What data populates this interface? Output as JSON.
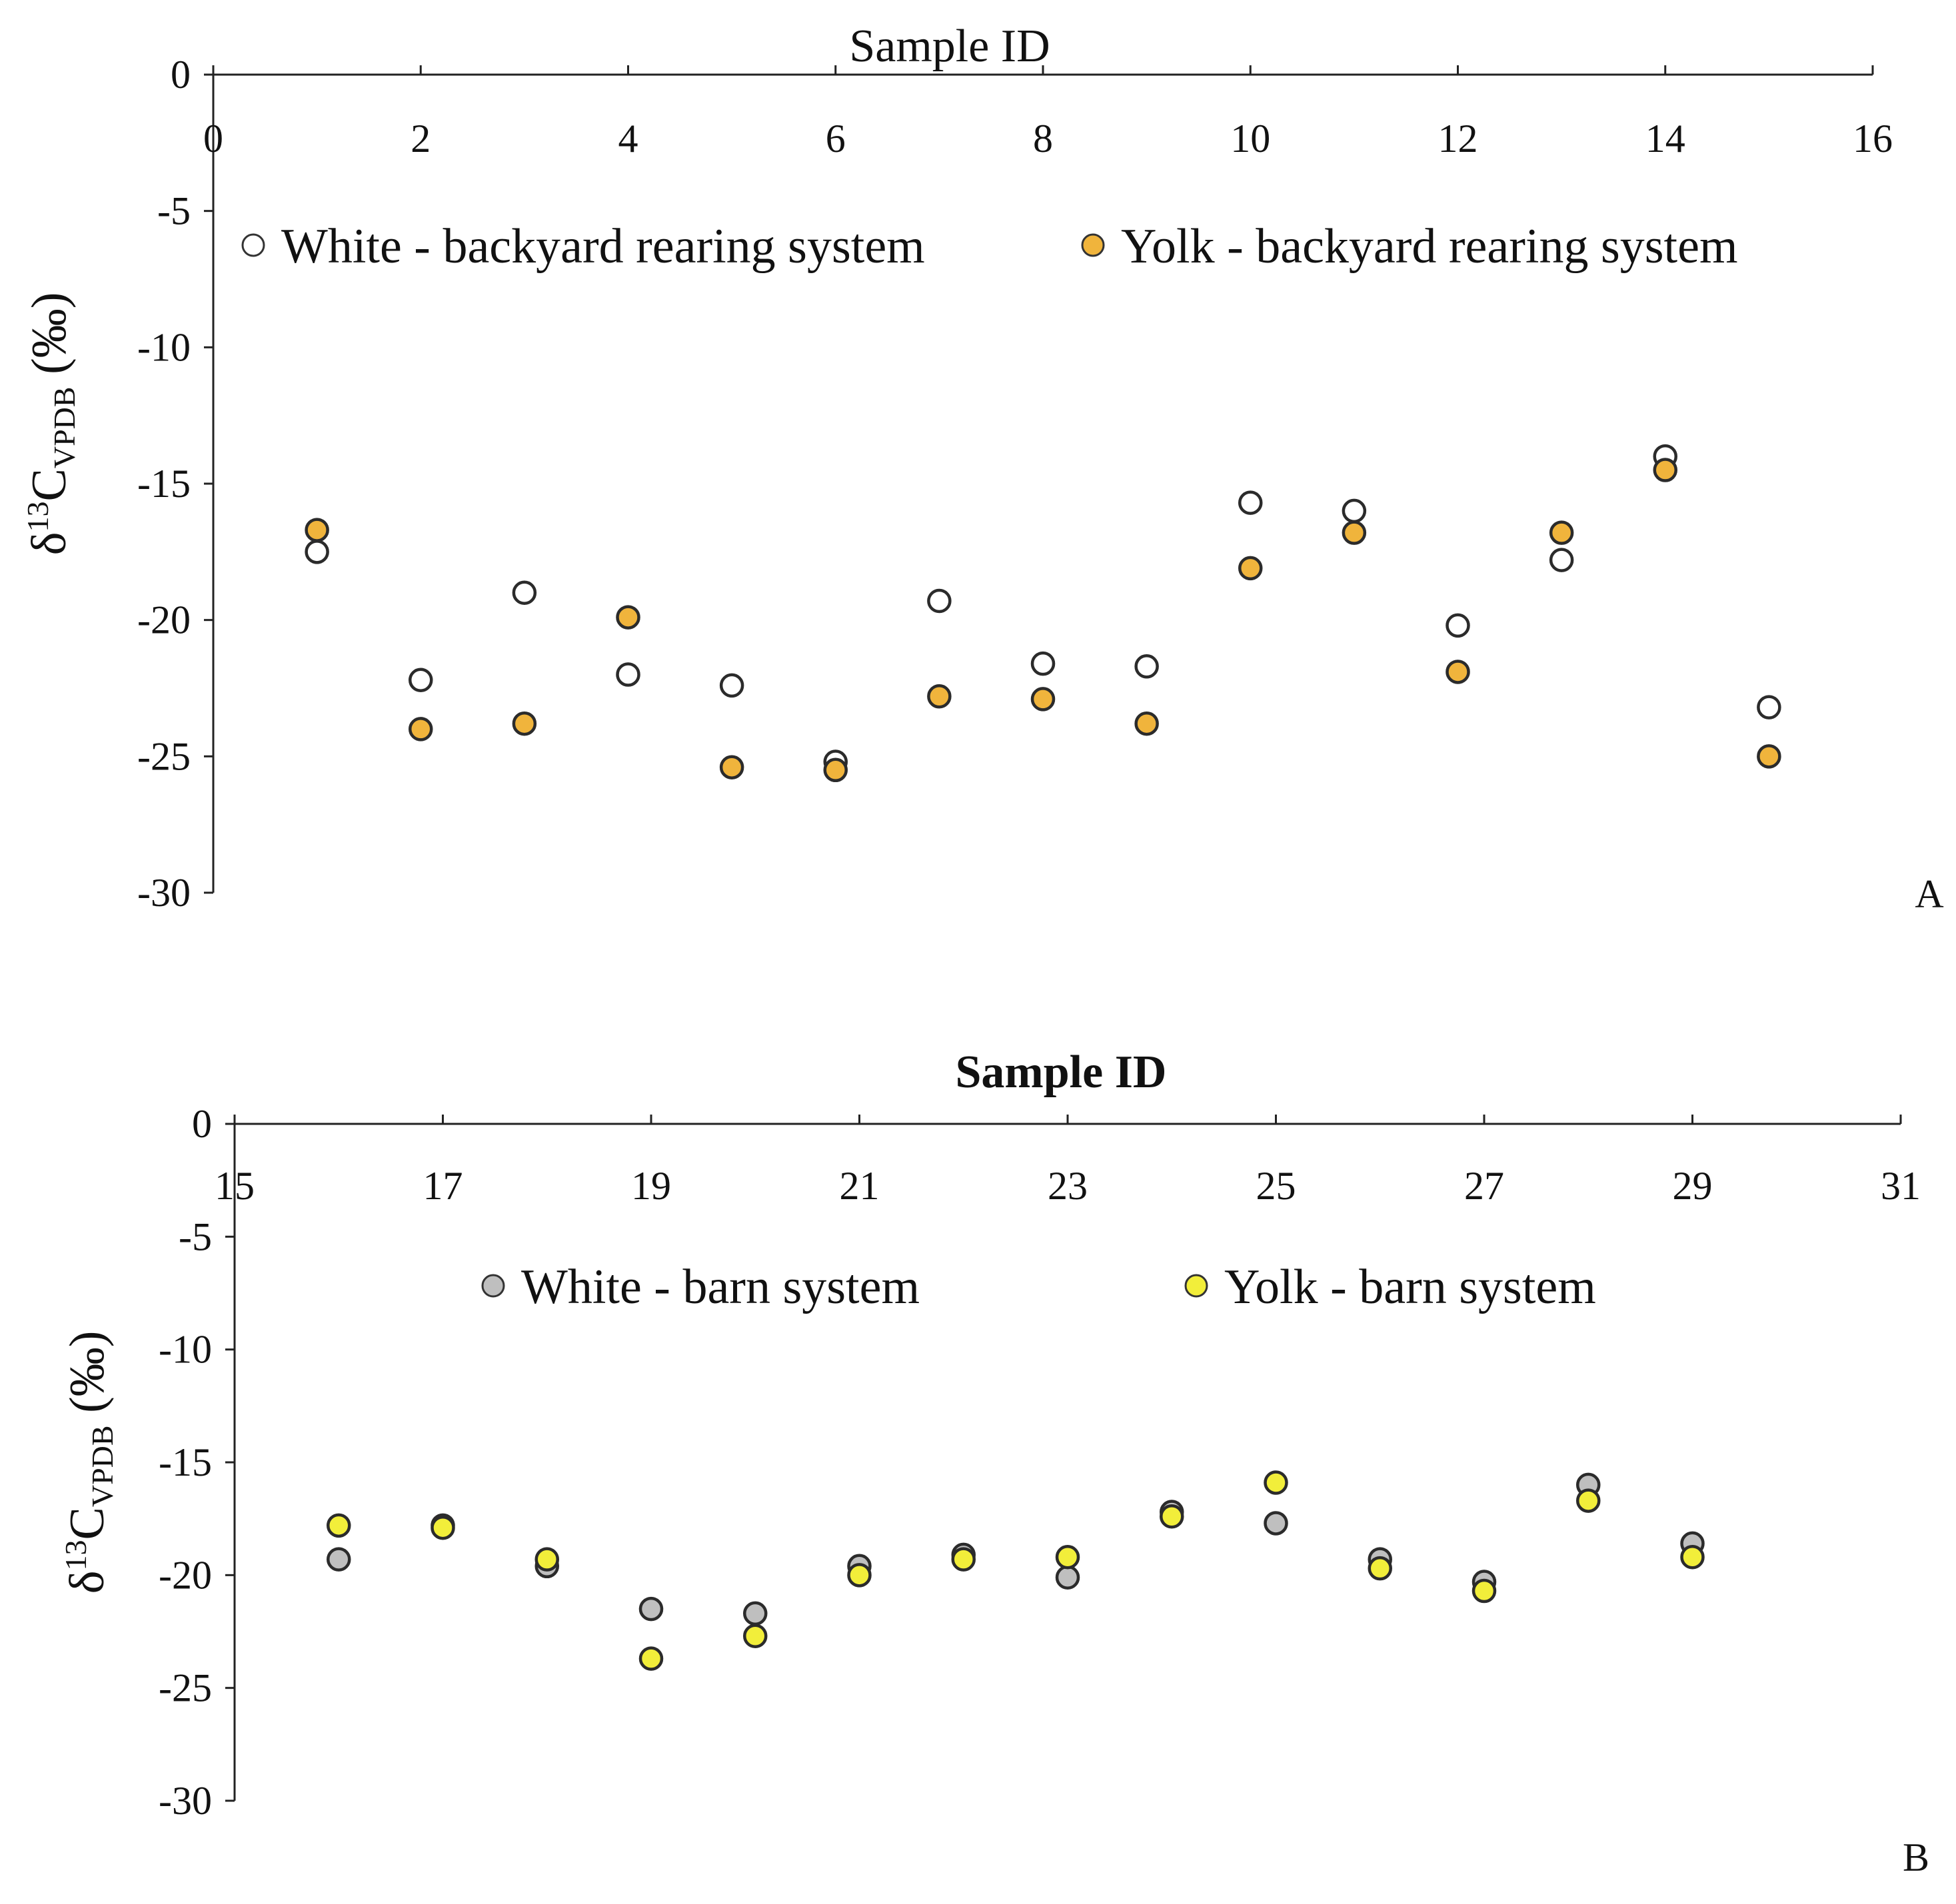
{
  "chart_data": [
    {
      "type": "scatter",
      "panel_label": "A",
      "xlabel": "Sample ID",
      "xlabel_bold": false,
      "ylabel": {
        "symbol": "δ",
        "superscript": "13",
        "element": "C",
        "subscript": "VPDB",
        "unit": " (‰)"
      },
      "xlim": [
        0,
        16
      ],
      "ylim": [
        -30,
        0
      ],
      "x_axis_position": "top",
      "x_ticks": [
        0,
        2,
        4,
        6,
        8,
        10,
        12,
        14,
        16
      ],
      "x_tick_labels": [
        "0",
        "2",
        "4",
        "6",
        "8",
        "10",
        "12",
        "14",
        "16"
      ],
      "y_ticks": [
        0,
        -5,
        -10,
        -15,
        -20,
        -25,
        -30
      ],
      "y_tick_labels": [
        "0",
        "-5",
        "-10",
        "-15",
        "-20",
        "-25",
        "-30"
      ],
      "grid": false,
      "legend_position": "top",
      "series": [
        {
          "name": "White - backyard rearing system",
          "color": "#ffffff",
          "x": [
            1,
            2,
            3,
            4,
            5,
            6,
            7,
            8,
            9,
            10,
            11,
            12,
            13,
            14,
            15
          ],
          "y": [
            -17.5,
            -22.2,
            -19.0,
            -22.0,
            -22.4,
            -25.2,
            -19.3,
            -21.6,
            -21.7,
            -15.7,
            -16.0,
            -20.2,
            -17.8,
            -14.0,
            -23.2
          ]
        },
        {
          "name": "Yolk - backyard rearing system",
          "color": "#f0b43c",
          "x": [
            1,
            2,
            3,
            4,
            5,
            6,
            7,
            8,
            9,
            10,
            11,
            12,
            13,
            14,
            15
          ],
          "y": [
            -16.7,
            -24.0,
            -23.8,
            -19.9,
            -25.4,
            -25.5,
            -22.8,
            -22.9,
            -23.8,
            -18.1,
            -16.8,
            -21.9,
            -16.8,
            -14.5,
            -25.0
          ]
        }
      ]
    },
    {
      "type": "scatter",
      "panel_label": "B",
      "xlabel": "Sample ID",
      "xlabel_bold": true,
      "ylabel": {
        "symbol": "δ",
        "superscript": "13",
        "element": "C",
        "subscript": "VPDB",
        "unit": " (‰)"
      },
      "xlim": [
        15,
        31
      ],
      "ylim": [
        -30,
        0
      ],
      "x_axis_position": "top",
      "x_ticks": [
        15,
        17,
        19,
        21,
        23,
        25,
        27,
        29,
        31
      ],
      "x_tick_labels": [
        "15",
        "17",
        "19",
        "21",
        "23",
        "25",
        "27",
        "29",
        "31"
      ],
      "y_ticks": [
        0,
        -5,
        -10,
        -15,
        -20,
        -25,
        -30
      ],
      "y_tick_labels": [
        "0",
        "-5",
        "-10",
        "-15",
        "-20",
        "-25",
        "-30"
      ],
      "grid": false,
      "legend_position": "top",
      "series": [
        {
          "name": "White - barn system",
          "color": "#bfbfbf",
          "x": [
            16,
            17,
            18,
            19,
            20,
            21,
            22,
            23,
            24,
            25,
            26,
            27,
            28,
            29
          ],
          "y": [
            -19.3,
            -17.8,
            -19.6,
            -21.5,
            -21.7,
            -19.6,
            -19.1,
            -20.1,
            -17.2,
            -17.7,
            -19.3,
            -20.3,
            -16.0,
            -18.6
          ]
        },
        {
          "name": "Yolk - barn system",
          "color": "#f2ee3a",
          "x": [
            16,
            17,
            18,
            19,
            20,
            21,
            22,
            23,
            24,
            25,
            26,
            27,
            28,
            29
          ],
          "y": [
            -17.8,
            -17.9,
            -19.3,
            -23.7,
            -22.7,
            -20.0,
            -19.3,
            -19.2,
            -17.4,
            -15.9,
            -19.7,
            -20.7,
            -16.7,
            -19.2
          ]
        }
      ]
    }
  ]
}
